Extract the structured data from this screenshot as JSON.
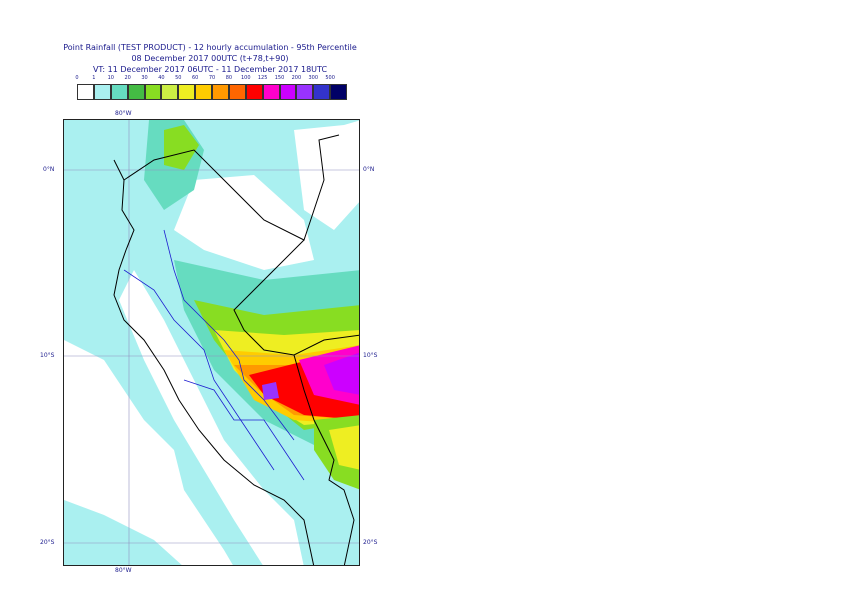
{
  "title": {
    "line1": "Point Rainfall (TEST PRODUCT) - 12 hourly accumulation - 95th Percentile",
    "line2": "08 December 2017 00UTC (t+78,t+90)",
    "line3": "VT: 11 December 2017 06UTC - 11 December 2017 18UTC"
  },
  "legend": {
    "ticks": [
      "0",
      "1",
      "10",
      "20",
      "30",
      "40",
      "50",
      "60",
      "70",
      "80",
      "100",
      "125",
      "150",
      "200",
      "300",
      "500"
    ],
    "colors": [
      "#ffffff",
      "#aaf0f0",
      "#66dcc0",
      "#44bb44",
      "#88dd22",
      "#ccee44",
      "#eeee22",
      "#ffcc00",
      "#ff9900",
      "#ff6600",
      "#ff0000",
      "#ff00cc",
      "#cc00ff",
      "#9933ff",
      "#3333cc",
      "#000066"
    ]
  },
  "map_labels": {
    "lon_top": "80°W",
    "lon_bottom": "80°W",
    "lat_0_left": "0°N",
    "lat_0_right": "0°N",
    "lat_10_left": "10°S",
    "lat_10_right": "10°S",
    "lat_20_left": "20°S",
    "lat_20_right": "20°S"
  }
}
